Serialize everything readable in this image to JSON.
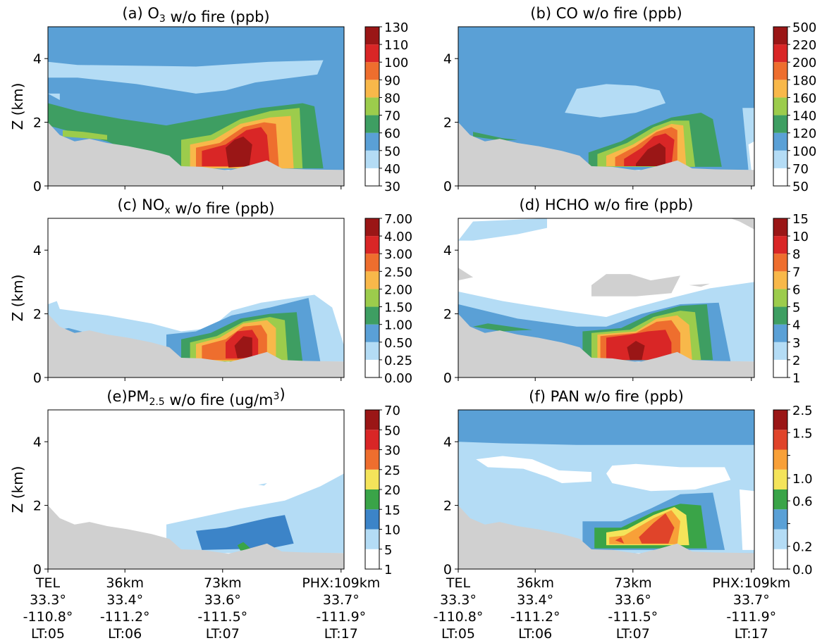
{
  "chart_data": [
    {
      "id": "a",
      "type": "heatmap",
      "title": "(a) O",
      "title_sub": "3",
      "title_rest": " w/o fire (ppb)",
      "ylabel": "Z (km)",
      "ylim": [
        0,
        5
      ],
      "yticks": [
        "0",
        "2",
        "4"
      ],
      "colorbar_levels": [
        "30",
        "40",
        "50",
        "60",
        "70",
        "80",
        "90",
        "100",
        "110",
        "130"
      ],
      "colors": [
        "#ffffff",
        "#b4dcf5",
        "#5aa0d6",
        "#3e9e62",
        "#9ccc4c",
        "#f8b84a",
        "#ee6e2e",
        "#d92626",
        "#9a1616"
      ],
      "regions": [
        {
          "level": 1,
          "x": 0.0,
          "y": [
            2.9,
            3.9
          ],
          "shape": "upper_band"
        },
        {
          "level": 3,
          "peak_x": 0.66,
          "peak_z": 2.6
        },
        {
          "level": 8,
          "peak_x": 0.67,
          "peak_z": 1.2
        }
      ]
    },
    {
      "id": "b",
      "type": "heatmap",
      "title": "(b) CO w/o fire (ppb)",
      "ylabel": "",
      "ylim": [
        0,
        5
      ],
      "yticks": [
        "0",
        "2",
        "4"
      ],
      "colorbar_levels": [
        "50",
        "70",
        "100",
        "120",
        "140",
        "160",
        "180",
        "200",
        "220",
        "500"
      ],
      "colors": [
        "#ffffff",
        "#b4dcf5",
        "#5aa0d6",
        "#3e9e62",
        "#9ccc4c",
        "#f8b84a",
        "#ee6e2e",
        "#d92626",
        "#9a1616"
      ]
    },
    {
      "id": "c",
      "type": "heatmap",
      "title": "(c) NO",
      "title_sub": "x",
      "title_rest": " w/o fire (ppb)",
      "ylabel": "Z (km)",
      "ylim": [
        0,
        5
      ],
      "yticks": [
        "0",
        "2",
        "4"
      ],
      "colorbar_levels": [
        "0.00",
        "0.25",
        "0.50",
        "1.00",
        "1.50",
        "2.00",
        "2.50",
        "3.00",
        "4.00",
        "7.00"
      ],
      "colors": [
        "#ffffff",
        "#b4dcf5",
        "#5aa0d6",
        "#3e9e62",
        "#9ccc4c",
        "#f8b84a",
        "#ee6e2e",
        "#d92626",
        "#9a1616"
      ]
    },
    {
      "id": "d",
      "type": "heatmap",
      "title": "(d) HCHO w/o fire (ppb)",
      "ylabel": "",
      "ylim": [
        0,
        5
      ],
      "yticks": [
        "0",
        "2",
        "4"
      ],
      "colorbar_levels": [
        "1",
        "2",
        "3",
        "4",
        "5",
        "6",
        "7",
        "8",
        "10",
        "15"
      ],
      "colors": [
        "#ffffff",
        "#b4dcf5",
        "#5aa0d6",
        "#3e9e62",
        "#9ccc4c",
        "#f8b84a",
        "#ee6e2e",
        "#d92626",
        "#9a1616"
      ]
    },
    {
      "id": "e",
      "type": "heatmap",
      "title": "(e)PM",
      "title_sub": "2.5",
      "title_rest": " w/o fire (ug/m",
      "title_sup": "3",
      "title_end": ")",
      "ylabel": "Z (km)",
      "ylim": [
        0,
        5
      ],
      "yticks": [
        "0",
        "2",
        "4"
      ],
      "colorbar_levels": [
        "1",
        "5",
        "10",
        "15",
        "20",
        "25",
        "30",
        "50",
        "70"
      ],
      "colors": [
        "#ffffff",
        "#b4dcf5",
        "#3c84c8",
        "#3aa448",
        "#f4e45a",
        "#ee6e2e",
        "#d92626",
        "#9a1616"
      ]
    },
    {
      "id": "f",
      "type": "heatmap",
      "title": "(f) PAN w/o fire (ppb)",
      "ylabel": "",
      "ylim": [
        0,
        5
      ],
      "yticks": [
        "0",
        "2",
        "4"
      ],
      "colorbar_levels": [
        "0.0",
        "0.2",
        "0.4",
        "0.6",
        "1.0",
        "1.2",
        "1.5",
        "2.5"
      ],
      "colorbar_label_levels": [
        "0.0",
        "0.2",
        "0.6",
        "1.0",
        "1.5",
        "2.5"
      ],
      "colors": [
        "#ffffff",
        "#b4dcf5",
        "#5aa0d6",
        "#3aa448",
        "#f4e45a",
        "#f8a038",
        "#e0442a",
        "#9a1616"
      ]
    }
  ],
  "x_axis": {
    "stations": [
      {
        "lines": [
          "TEL",
          "33.3°",
          "-110.8°",
          "LT:05"
        ]
      },
      {
        "lines": [
          "36km",
          "33.4°",
          "-111.2°",
          "LT:06"
        ]
      },
      {
        "lines": [
          "73km",
          "33.6°",
          "-111.5°",
          "LT:07"
        ]
      },
      {
        "lines": [
          "PHX:109km",
          "33.7°",
          "-111.9°",
          "LT:17"
        ]
      }
    ]
  },
  "terrain_color": "#d0d0d0"
}
